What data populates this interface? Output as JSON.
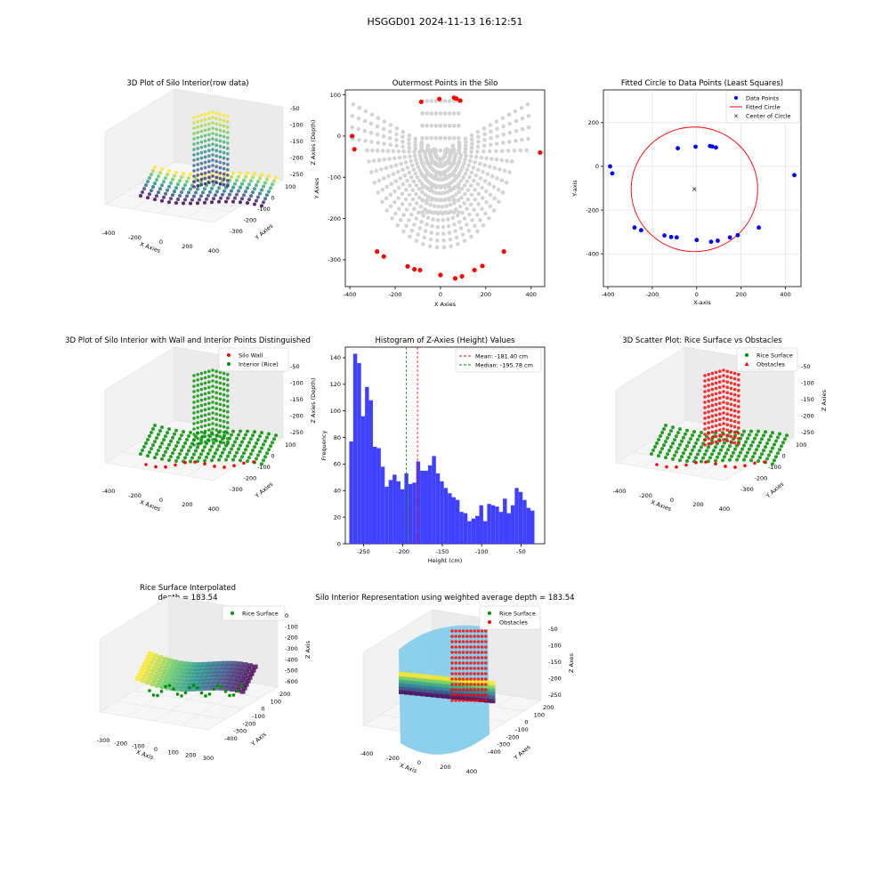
{
  "figure_title": "HSGGD01 2024-11-13 16:12:51",
  "chart_data": [
    {
      "id": "p1",
      "type": "scatter3d",
      "title": "3D Plot of Silo Interior(row data)",
      "xlabel": "X Axies",
      "ylabel": "Y Axies",
      "zlabel": "Z Axies (Depth)",
      "x_ticks": [
        "-400",
        "-200",
        "0",
        "200",
        "400"
      ],
      "y_ticks": [
        "-300",
        "-200",
        "-100",
        "0",
        "100"
      ],
      "z_ticks": [
        "-50",
        "-100",
        "-150",
        "-200",
        "-250"
      ],
      "colormap": "viridis"
    },
    {
      "id": "p2",
      "type": "scatter",
      "title": "Outermost Points in the Silo",
      "xlabel": "X Axies",
      "ylabel": "Y Axies",
      "xlim": [
        -420,
        460
      ],
      "ylim": [
        -365,
        112
      ],
      "x_ticks": [
        -400,
        -200,
        0,
        200,
        400
      ],
      "y_ticks": [
        100,
        0,
        -100,
        -200,
        -300
      ],
      "background_color": "#d3d3d3",
      "highlight_color": "#ff0000",
      "outermost_points": [
        [
          -390,
          0
        ],
        [
          -380,
          -32
        ],
        [
          -85,
          83
        ],
        [
          -5,
          90
        ],
        [
          60,
          93
        ],
        [
          70,
          91
        ],
        [
          87,
          86
        ],
        [
          440,
          -40
        ],
        [
          -280,
          -280
        ],
        [
          -250,
          -292
        ],
        [
          -145,
          -316
        ],
        [
          -115,
          -323
        ],
        [
          -90,
          -325
        ],
        [
          0,
          -337
        ],
        [
          65,
          -345
        ],
        [
          95,
          -340
        ],
        [
          150,
          -325
        ],
        [
          185,
          -315
        ],
        [
          280,
          -280
        ]
      ]
    },
    {
      "id": "p3",
      "type": "scatter",
      "title": "Fitted Circle to Data Points (Least Squares)",
      "xlabel": "X-axis",
      "ylabel": "Y-axis",
      "xlim": [
        -420,
        470
      ],
      "ylim": [
        -550,
        350
      ],
      "x_ticks": [
        -400,
        -200,
        0,
        200,
        400
      ],
      "y_ticks": [
        200,
        0,
        -200,
        -400
      ],
      "grid": true,
      "legend": [
        "Data Points",
        "Fitted Circle",
        "Center of Circle"
      ],
      "legend_position": "top-right",
      "points": [
        [
          -390,
          0
        ],
        [
          -380,
          -32
        ],
        [
          -85,
          83
        ],
        [
          -5,
          90
        ],
        [
          60,
          93
        ],
        [
          70,
          91
        ],
        [
          87,
          86
        ],
        [
          440,
          -40
        ],
        [
          -280,
          -280
        ],
        [
          -250,
          -292
        ],
        [
          -145,
          -316
        ],
        [
          -115,
          -323
        ],
        [
          -90,
          -325
        ],
        [
          0,
          -337
        ],
        [
          65,
          -345
        ],
        [
          95,
          -340
        ],
        [
          150,
          -325
        ],
        [
          185,
          -315
        ],
        [
          280,
          -280
        ]
      ],
      "circle": {
        "cx": -10,
        "cy": -105,
        "r": 285
      },
      "point_color": "#0000ff",
      "circle_color": "#ff0000",
      "center_color": "#008000"
    },
    {
      "id": "p4",
      "type": "scatter3d",
      "title": "3D Plot of Silo Interior with Wall and Interior Points Distinguished",
      "xlabel": "X Axies",
      "ylabel": "Y Axies",
      "zlabel": "Z Axies (Depth)",
      "x_ticks": [
        "-400",
        "-200",
        "0",
        "200",
        "400"
      ],
      "y_ticks": [
        "-300",
        "-200",
        "-100",
        "0",
        "100"
      ],
      "z_ticks": [
        "-50",
        "-100",
        "-150",
        "-200",
        "-250"
      ],
      "legend": [
        "Silo Wall",
        "Interior (Rice)"
      ],
      "legend_position": "top-right"
    },
    {
      "id": "p5",
      "type": "histogram",
      "title": "Histogram of Z-Axies (Height) Values",
      "xlabel": "Height (cm)",
      "ylabel": "Frequency",
      "xlim": [
        -273,
        -20
      ],
      "ylim": [
        0,
        148
      ],
      "x_ticks": [
        -250,
        -200,
        -150,
        -100,
        -50
      ],
      "y_ticks": [
        0,
        20,
        40,
        60,
        80,
        100,
        120,
        140
      ],
      "bin_start": -268,
      "bin_width": 5,
      "counts": [
        77,
        143,
        136,
        96,
        118,
        108,
        73,
        72,
        58,
        43,
        48,
        52,
        47,
        41,
        53,
        45,
        46,
        62,
        55,
        55,
        59,
        66,
        53,
        47,
        42,
        38,
        35,
        33,
        24,
        23,
        17,
        19,
        21,
        29,
        17,
        30,
        29,
        28,
        24,
        34,
        23,
        29,
        42,
        39,
        33,
        27,
        25
      ],
      "bar_color": "#4040ff",
      "mean": -181.4,
      "median": -195.78,
      "legend": [
        "Mean: -181.40 cm",
        "Median: -195.78 cm"
      ],
      "legend_position": "top-right"
    },
    {
      "id": "p6",
      "type": "scatter3d",
      "title": "3D Scatter Plot: Rice Surface vs Obstacles",
      "xlabel": "X Axies",
      "ylabel": "Y Axies",
      "zlabel": "Z Axies",
      "x_ticks": [
        "-400",
        "-200",
        "0",
        "200",
        "400"
      ],
      "y_ticks": [
        "-300",
        "-200",
        "-100",
        "0",
        "100"
      ],
      "z_ticks": [
        "-50",
        "-100",
        "-150",
        "-200",
        "-250"
      ],
      "legend": [
        "Rice Surface",
        "Obstacles"
      ],
      "legend_position": "top-right"
    },
    {
      "id": "p7",
      "type": "surface3d",
      "title": "Rice Surface Interpolated",
      "subtitle": "depth = 183.54",
      "xlabel": "X Axis",
      "ylabel": "Y Axis",
      "zlabel": "Z Axis",
      "x_ticks": [
        "-300",
        "-200",
        "-100",
        "0",
        "100",
        "200",
        "300"
      ],
      "y_ticks": [
        "-400",
        "-300",
        "-200",
        "-100",
        "0",
        "100",
        "200"
      ],
      "z_ticks": [
        "0",
        "-100",
        "-200",
        "-300",
        "-400",
        "-500",
        "-600"
      ],
      "legend": [
        "Rice Surface"
      ],
      "legend_position": "top-right"
    },
    {
      "id": "p8",
      "type": "surface3d",
      "title": "Silo Interior Representation using weighted average depth = 183.54",
      "xlabel": "X Axis",
      "ylabel": "Y Axes",
      "zlabel": "Z Axes",
      "x_ticks": [
        "-400",
        "-200",
        "0",
        "200",
        "400"
      ],
      "y_ticks": [
        "-400",
        "-300",
        "-200",
        "-100",
        "0",
        "100",
        "200"
      ],
      "z_ticks": [
        "-50",
        "-100",
        "-150",
        "-200",
        "-250"
      ],
      "legend": [
        "Rice Surface",
        "Obstacles"
      ],
      "legend_position": "top-right",
      "cylinder_color": "#87ceeb"
    }
  ]
}
